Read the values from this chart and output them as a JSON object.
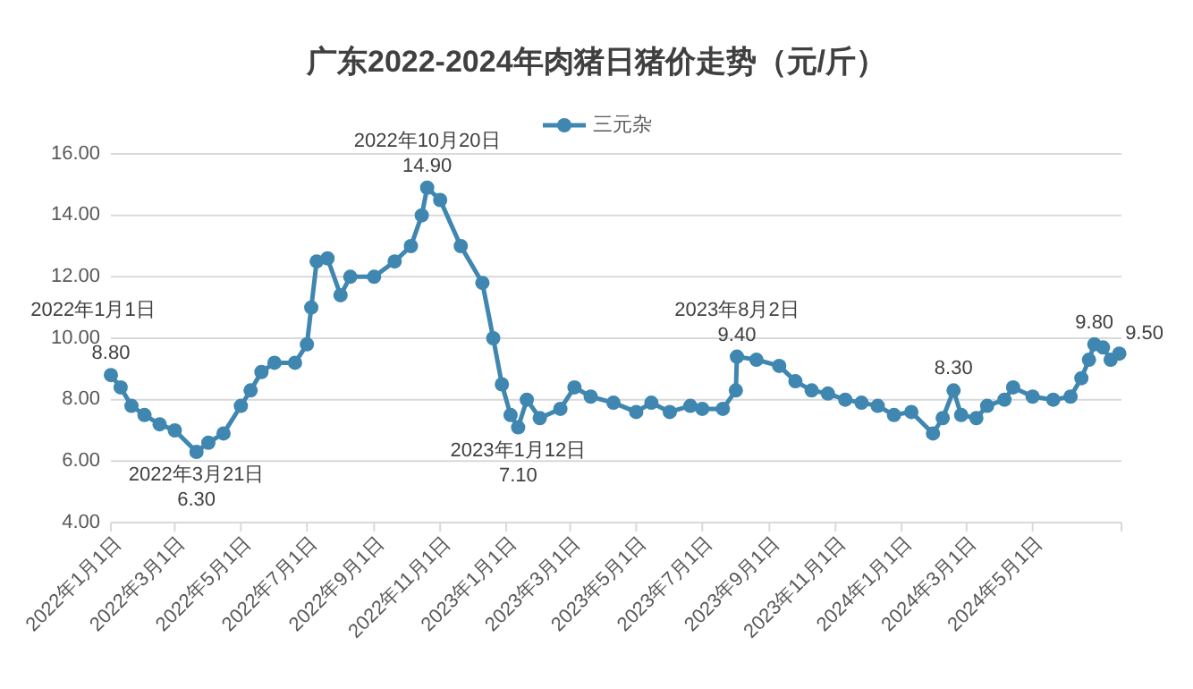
{
  "chart_data": {
    "type": "line",
    "title": "广东2022-2024年肉猪日猪价走势（元/斤）",
    "x": [
      "2022-01-01",
      "2022-01-10",
      "2022-01-20",
      "2022-02-01",
      "2022-02-15",
      "2022-03-01",
      "2022-03-21",
      "2022-04-01",
      "2022-04-15",
      "2022-05-01",
      "2022-05-10",
      "2022-05-20",
      "2022-06-01",
      "2022-06-20",
      "2022-07-01",
      "2022-07-05",
      "2022-07-10",
      "2022-07-20",
      "2022-08-01",
      "2022-08-10",
      "2022-09-01",
      "2022-09-20",
      "2022-10-05",
      "2022-10-15",
      "2022-10-20",
      "2022-11-01",
      "2022-11-20",
      "2022-12-10",
      "2022-12-20",
      "2022-12-28",
      "2023-01-05",
      "2023-01-12",
      "2023-01-20",
      "2023-02-01",
      "2023-02-20",
      "2023-03-05",
      "2023-03-20",
      "2023-04-10",
      "2023-05-01",
      "2023-05-15",
      "2023-06-01",
      "2023-06-20",
      "2023-07-01",
      "2023-07-20",
      "2023-08-01",
      "2023-08-02",
      "2023-08-20",
      "2023-09-10",
      "2023-09-25",
      "2023-10-10",
      "2023-10-25",
      "2023-11-10",
      "2023-11-25",
      "2023-12-10",
      "2023-12-25",
      "2024-01-10",
      "2024-01-30",
      "2024-02-08",
      "2024-02-18",
      "2024-02-25",
      "2024-03-10",
      "2024-03-20",
      "2024-04-05",
      "2024-04-13",
      "2024-05-01",
      "2024-05-20",
      "2024-06-05",
      "2024-06-15",
      "2024-06-22",
      "2024-06-27",
      "2024-07-05",
      "2024-07-12",
      "2024-07-20"
    ],
    "series": [
      {
        "name": "三元杂",
        "color": "#3f87b0",
        "values": [
          8.8,
          8.4,
          7.8,
          7.5,
          7.2,
          7.0,
          6.3,
          6.6,
          6.9,
          7.8,
          8.3,
          8.9,
          9.2,
          9.2,
          9.8,
          11.0,
          12.5,
          12.6,
          11.4,
          12.0,
          12.0,
          12.5,
          13.0,
          14.0,
          14.9,
          14.5,
          13.0,
          11.8,
          10.0,
          8.5,
          7.5,
          7.1,
          8.0,
          7.4,
          7.7,
          8.4,
          8.1,
          7.9,
          7.6,
          7.9,
          7.6,
          7.8,
          7.7,
          7.7,
          8.3,
          9.4,
          9.3,
          9.1,
          8.6,
          8.3,
          8.2,
          8.0,
          7.9,
          7.8,
          7.5,
          7.6,
          6.9,
          7.4,
          8.3,
          7.5,
          7.4,
          7.8,
          8.0,
          8.4,
          8.1,
          8.0,
          8.1,
          8.7,
          9.3,
          9.8,
          9.7,
          9.3,
          9.5
        ],
        "value_labels": [
          "8.80",
          null,
          null,
          null,
          null,
          null,
          "6.30",
          null,
          null,
          null,
          null,
          null,
          null,
          null,
          null,
          null,
          null,
          null,
          null,
          null,
          null,
          null,
          null,
          null,
          "14.90",
          null,
          null,
          null,
          null,
          null,
          null,
          "7.10",
          null,
          null,
          null,
          null,
          null,
          null,
          null,
          null,
          null,
          null,
          null,
          null,
          null,
          "9.40",
          null,
          null,
          null,
          null,
          null,
          null,
          null,
          null,
          null,
          null,
          null,
          null,
          "8.30",
          null,
          null,
          null,
          null,
          null,
          null,
          null,
          null,
          null,
          null,
          "9.80",
          null,
          null,
          "9.50"
        ]
      }
    ],
    "annotations": [
      {
        "text": "2022年1月1日",
        "x": "2022-01-01",
        "y": 8.8
      },
      {
        "text": "2022年3月21日",
        "x": "2022-03-21",
        "y": 6.3
      },
      {
        "text": "2022年10月20日",
        "x": "2022-10-20",
        "y": 14.9
      },
      {
        "text": "2023年1月12日",
        "x": "2023-01-12",
        "y": 7.1
      },
      {
        "text": "2023年8月2日",
        "x": "2023-08-02",
        "y": 9.4
      }
    ],
    "xlim": [
      "2022-01-01",
      "2024-07-22"
    ],
    "xticks": [
      {
        "value": "2022-01-01",
        "label": "2022年1月1日"
      },
      {
        "value": "2022-03-01",
        "label": "2022年3月1日"
      },
      {
        "value": "2022-05-01",
        "label": "2022年5月1日"
      },
      {
        "value": "2022-07-01",
        "label": "2022年7月1日"
      },
      {
        "value": "2022-09-01",
        "label": "2022年9月1日"
      },
      {
        "value": "2022-11-01",
        "label": "2022年11月1日"
      },
      {
        "value": "2023-01-01",
        "label": "2023年1月1日"
      },
      {
        "value": "2023-03-01",
        "label": "2023年3月1日"
      },
      {
        "value": "2023-05-01",
        "label": "2023年5月1日"
      },
      {
        "value": "2023-07-01",
        "label": "2023年7月1日"
      },
      {
        "value": "2023-09-01",
        "label": "2023年9月1日"
      },
      {
        "value": "2023-11-01",
        "label": "2023年11月1日"
      },
      {
        "value": "2024-01-01",
        "label": "2024年1月1日"
      },
      {
        "value": "2024-03-01",
        "label": "2024年3月1日"
      },
      {
        "value": "2024-05-01",
        "label": "2024年5月1日"
      }
    ],
    "ylim": [
      4,
      16
    ],
    "yticks": [
      {
        "value": 4,
        "label": "4.00"
      },
      {
        "value": 6,
        "label": "6.00"
      },
      {
        "value": 8,
        "label": "8.00"
      },
      {
        "value": 10,
        "label": "10.00"
      },
      {
        "value": 12,
        "label": "12.00"
      },
      {
        "value": 14,
        "label": "14.00"
      },
      {
        "value": 16,
        "label": "16.00"
      }
    ],
    "grid": "y",
    "legend": "top",
    "marker": "circle",
    "line_style": "solid"
  }
}
